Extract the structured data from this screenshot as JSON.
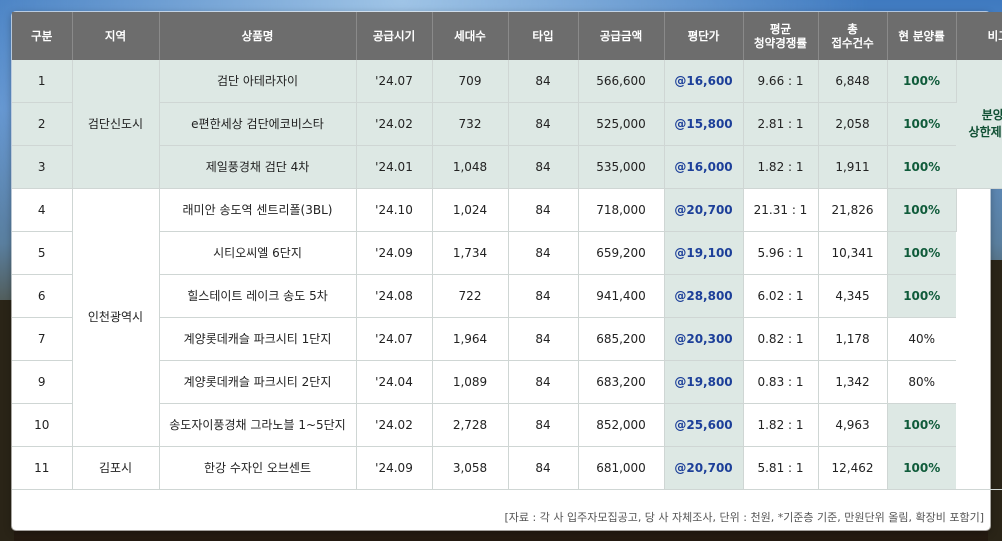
{
  "table": {
    "headers": [
      "구분",
      "지역",
      "상품명",
      "공급시기",
      "세대수",
      "타입",
      "공급금액",
      "평단가",
      "평균\n청약경쟁률",
      "총\n접수건수",
      "현 분양률",
      "비고"
    ],
    "regions": [
      "검단신도시",
      "인천광역시",
      "김포시"
    ],
    "note": "분양가\n상한제 적용",
    "rows": [
      {
        "no": "1",
        "name": "검단 아테라자이",
        "period": "'24.07",
        "units": "709",
        "type": "84",
        "price": "566,600",
        "pyeong": "@16,600",
        "rate": "9.66 : 1",
        "apps": "6,848",
        "sold": "100%"
      },
      {
        "no": "2",
        "name": "e편한세상 검단에코비스타",
        "period": "'24.02",
        "units": "732",
        "type": "84",
        "price": "525,000",
        "pyeong": "@15,800",
        "rate": "2.81 : 1",
        "apps": "2,058",
        "sold": "100%"
      },
      {
        "no": "3",
        "name": "제일풍경채 검단 4차",
        "period": "'24.01",
        "units": "1,048",
        "type": "84",
        "price": "535,000",
        "pyeong": "@16,000",
        "rate": "1.82 : 1",
        "apps": "1,911",
        "sold": "100%"
      },
      {
        "no": "4",
        "name": "래미안 송도역 센트리폴(3BL)",
        "period": "'24.10",
        "units": "1,024",
        "type": "84",
        "price": "718,000",
        "pyeong": "@20,700",
        "rate": "21.31 : 1",
        "apps": "21,826",
        "sold": "100%"
      },
      {
        "no": "5",
        "name": "시티오씨엘 6단지",
        "period": "'24.09",
        "units": "1,734",
        "type": "84",
        "price": "659,200",
        "pyeong": "@19,100",
        "rate": "5.96 : 1",
        "apps": "10,341",
        "sold": "100%"
      },
      {
        "no": "6",
        "name": "힐스테이트 레이크 송도 5차",
        "period": "'24.08",
        "units": "722",
        "type": "84",
        "price": "941,400",
        "pyeong": "@28,800",
        "rate": "6.02 : 1",
        "apps": "4,345",
        "sold": "100%"
      },
      {
        "no": "7",
        "name": "계양롯데캐슬 파크시티 1단지",
        "period": "'24.07",
        "units": "1,964",
        "type": "84",
        "price": "685,200",
        "pyeong": "@20,300",
        "rate": "0.82 : 1",
        "apps": "1,178",
        "sold": "40%"
      },
      {
        "no": "9",
        "name": "계양롯데캐슬 파크시티 2단지",
        "period": "'24.04",
        "units": "1,089",
        "type": "84",
        "price": "683,200",
        "pyeong": "@19,800",
        "rate": "0.83 : 1",
        "apps": "1,342",
        "sold": "80%"
      },
      {
        "no": "10",
        "name": "송도자이풍경채 그라노블 1~5단지",
        "period": "'24.02",
        "units": "2,728",
        "type": "84",
        "price": "852,000",
        "pyeong": "@25,600",
        "rate": "1.82 : 1",
        "apps": "4,963",
        "sold": "100%"
      },
      {
        "no": "11",
        "name": "한강 수자인 오브센트",
        "period": "'24.09",
        "units": "3,058",
        "type": "84",
        "price": "681,000",
        "pyeong": "@20,700",
        "rate": "5.81 : 1",
        "apps": "12,462",
        "sold": "100%"
      }
    ]
  },
  "source": "[자료 : 각 사 입주자모집공고, 당 사 자체조사, 단위 : 천원, *기준층 기준, 만원단위 올림, 확장비 포함기]"
}
